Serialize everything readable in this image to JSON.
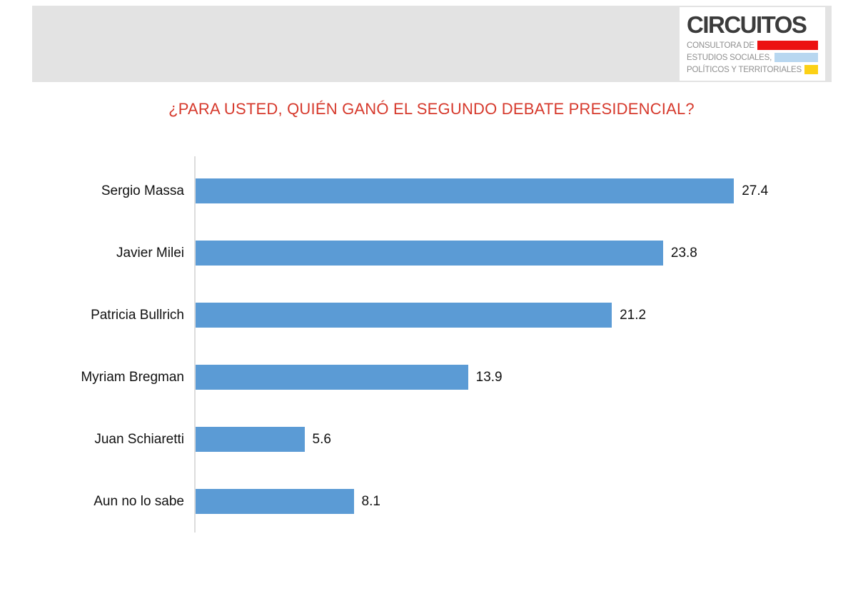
{
  "header": {
    "logo": {
      "wordmark": "CIRCUITOS",
      "lines": [
        {
          "text": "CONSULTORA DE",
          "bar_color": "#ec1212"
        },
        {
          "text": "ESTUDIOS SOCIALES,",
          "bar_color": "#b8d7f0"
        },
        {
          "text": "POLÍTICOS Y TERRITORIALES",
          "bar_color": "#fcd116"
        }
      ]
    }
  },
  "title": "¿PARA USTED, QUIÉN GANÓ EL SEGUNDO DEBATE PRESIDENCIAL?",
  "title_color": "#d6392c",
  "chart_data": {
    "type": "bar",
    "orientation": "horizontal",
    "title": "¿PARA USTED, QUIÉN GANÓ EL SEGUNDO DEBATE PRESIDENCIAL?",
    "categories": [
      "Sergio Massa",
      "Javier Milei",
      "Patricia Bullrich",
      "Myriam Bregman",
      "Juan Schiaretti",
      "Aun no lo sabe"
    ],
    "values": [
      27.4,
      23.8,
      21.2,
      13.9,
      5.6,
      8.1
    ],
    "value_labels": [
      "27.4",
      "23.8",
      "21.2",
      "13.9",
      "5.6",
      "8.1"
    ],
    "bar_color": "#5b9bd5",
    "xlim": [
      0,
      30
    ],
    "xlabel": "",
    "ylabel": "",
    "grid": false,
    "legend": false
  }
}
